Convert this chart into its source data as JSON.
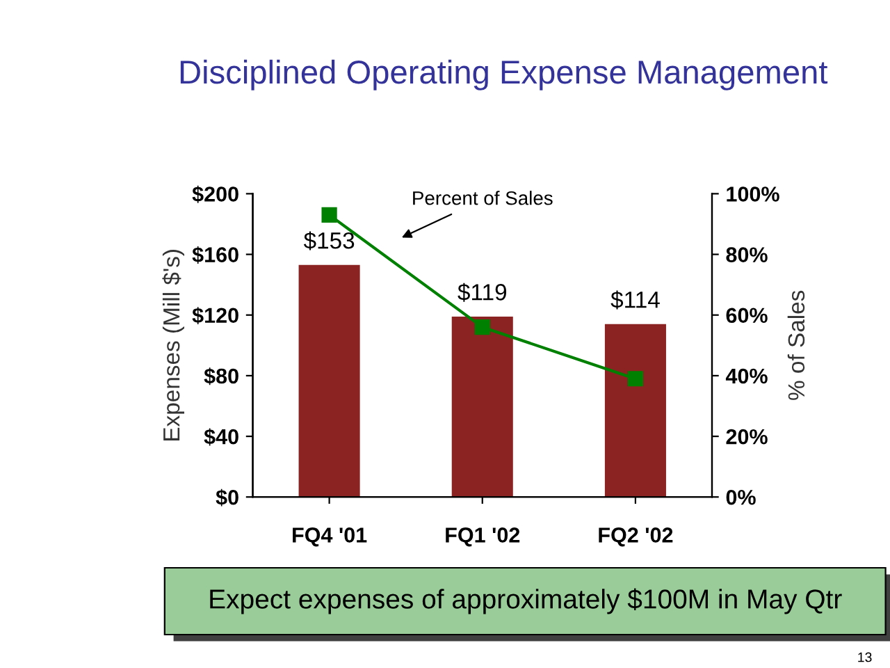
{
  "chart_data": {
    "type": "bar",
    "title": "Disciplined Operating Expense Management",
    "ylabel": "Expenses (Mill $'s)",
    "y2label": "% of Sales",
    "categories": [
      "FQ4 '01",
      "FQ1 '02",
      "FQ2 '02"
    ],
    "series": [
      {
        "color": "#8b2323",
        "values": [
          153,
          119,
          114
        ],
        "value_labels": [
          "$153",
          "$119",
          "$114"
        ]
      },
      {
        "type": "line",
        "name": "Percent of Sales",
        "axis": "y2",
        "color": "#008000",
        "marker": "square",
        "values": [
          93,
          56,
          39
        ]
      }
    ],
    "ylim": [
      0,
      200
    ],
    "yticks": [
      {
        "value": 0,
        "label": "$0"
      },
      {
        "value": 40,
        "label": "$40"
      },
      {
        "value": 80,
        "label": "$80"
      },
      {
        "value": 120,
        "label": "$120"
      },
      {
        "value": 160,
        "label": "$160"
      },
      {
        "value": 200,
        "label": "$200"
      }
    ],
    "y2lim": [
      0,
      100
    ],
    "y2ticks": [
      {
        "value": 0,
        "label": "0%"
      },
      {
        "value": 20,
        "label": "20%"
      },
      {
        "value": 40,
        "label": "40%"
      },
      {
        "value": 60,
        "label": "60%"
      },
      {
        "value": 80,
        "label": "80%"
      },
      {
        "value": 100,
        "label": "100%"
      }
    ],
    "grid": false,
    "legend": false,
    "annotations": [
      "Expect expenses of approximately $100M in May Qtr",
      "13"
    ]
  }
}
